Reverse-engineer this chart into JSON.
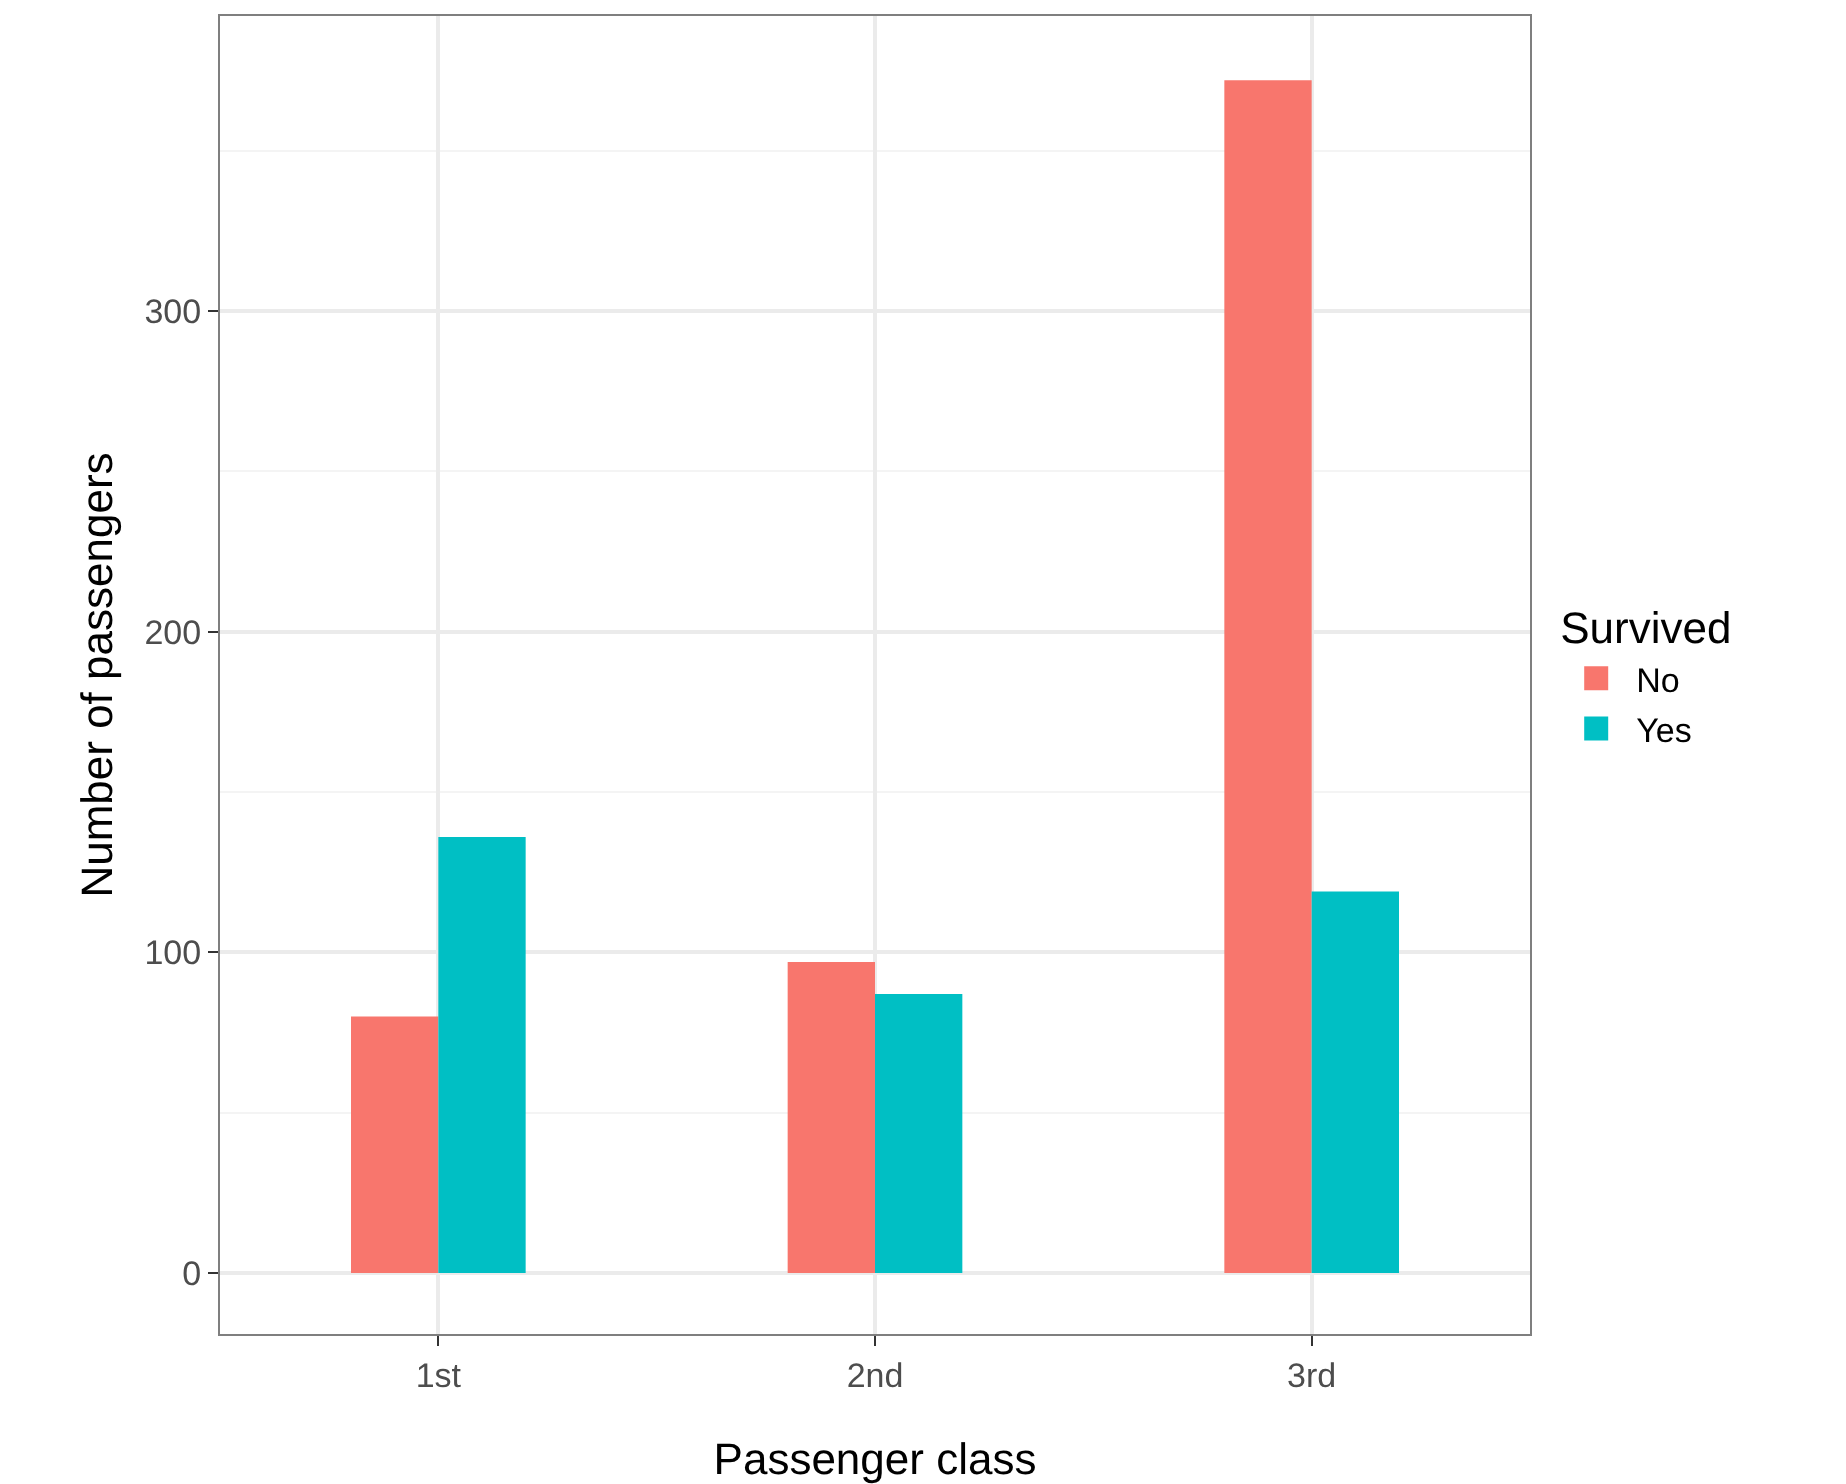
{
  "chart_data": {
    "type": "bar",
    "xlabel": "Passenger class",
    "ylabel": "Number of passengers",
    "legend_title": "Survived",
    "categories": [
      "1st",
      "2nd",
      "3rd"
    ],
    "series": [
      {
        "name": "No",
        "color": "#f8766d",
        "values": [
          80,
          97,
          372
        ]
      },
      {
        "name": "Yes",
        "color": "#00bfc4",
        "values": [
          136,
          87,
          119
        ]
      }
    ],
    "ylim": [
      -19,
      392
    ],
    "yticks": [
      0,
      100,
      200,
      300
    ],
    "grid": true,
    "legend": "right"
  }
}
